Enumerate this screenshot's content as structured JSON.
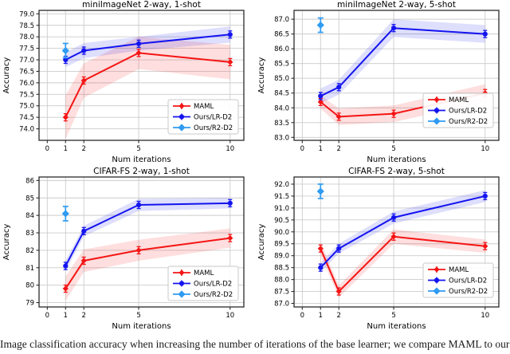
{
  "caption": {
    "text": "Image classification accuracy when increasing the number of iterations of the base learner; we compare MAML to our closed-form solvers with different numbers of steps."
  },
  "colors": {
    "maml": "#f51414",
    "lr_d2": "#1414f0",
    "r2_d2": "#2f9bf2",
    "grid": "#cccccc",
    "spine": "#2b2b2b",
    "legend_border": "#c8c8c8",
    "band_alpha": 0.14
  },
  "legend": {
    "items": [
      {
        "label": "MAML",
        "color": "#f51414",
        "marker": "diamond"
      },
      {
        "label": "Ours/LR-D2",
        "color": "#1414f0",
        "marker": "circle"
      },
      {
        "label": "Ours/R2-D2",
        "color": "#2f9bf2",
        "marker": "diamond-big"
      }
    ]
  },
  "chart_data": [
    {
      "type": "line",
      "title": "miniImageNet 2-way, 1-shot",
      "xlabel": "Num iterations",
      "ylabel": "Accuracy",
      "x": [
        1,
        2,
        5,
        10
      ],
      "xticks": [
        0,
        1,
        2,
        5,
        10
      ],
      "xlim": [
        -0.45,
        10.75
      ],
      "ylim": [
        73.5,
        79.15
      ],
      "yticks": [
        74.0,
        74.5,
        75.0,
        75.5,
        76.0,
        76.5,
        77.0,
        77.5,
        78.0,
        78.5,
        79.0
      ],
      "ytick_decimals": 1,
      "grid": true,
      "legend_position": "lower right",
      "legend_bottom_offset": 8,
      "series": [
        {
          "name": "MAML",
          "color": "#f51414",
          "marker": "diamond",
          "values": [
            74.5,
            76.1,
            77.3,
            76.9
          ],
          "ci": [
            0.95,
            0.75,
            0.7,
            0.75
          ]
        },
        {
          "name": "Ours/LR-D2",
          "color": "#1414f0",
          "marker": "circle",
          "values": [
            77.0,
            77.4,
            77.7,
            78.1
          ],
          "ci": [
            0.32,
            0.33,
            0.3,
            0.35
          ]
        },
        {
          "name": "Ours/R2-D2",
          "color": "#2f9bf2",
          "marker": "diamond-big",
          "point_only": true,
          "x": [
            1
          ],
          "values": [
            77.4
          ],
          "err": [
            0.28
          ]
        }
      ]
    },
    {
      "type": "line",
      "title": "miniImageNet 2-way, 5-shot",
      "xlabel": "Num iterations",
      "ylabel": "Accuracy",
      "x": [
        1,
        2,
        5,
        10
      ],
      "xticks": [
        0,
        1,
        2,
        5,
        10
      ],
      "xlim": [
        -0.45,
        10.75
      ],
      "ylim": [
        82.9,
        87.3
      ],
      "yticks": [
        83.0,
        83.5,
        84.0,
        84.5,
        85.0,
        85.5,
        86.0,
        86.5,
        87.0
      ],
      "ytick_decimals": 1,
      "grid": true,
      "legend_position": "lower right",
      "legend_bottom_offset": 16,
      "series": [
        {
          "name": "MAML",
          "color": "#f51414",
          "marker": "diamond",
          "values": [
            84.2,
            83.7,
            83.8,
            84.5
          ],
          "ci": [
            0.22,
            0.28,
            0.28,
            0.3
          ]
        },
        {
          "name": "Ours/LR-D2",
          "color": "#1414f0",
          "marker": "circle",
          "values": [
            84.4,
            84.7,
            86.7,
            86.5
          ],
          "ci": [
            0.25,
            0.25,
            0.3,
            0.3
          ]
        },
        {
          "name": "Ours/R2-D2",
          "color": "#2f9bf2",
          "marker": "diamond-big",
          "point_only": true,
          "x": [
            1
          ],
          "values": [
            86.8
          ],
          "err": [
            0.17
          ]
        }
      ]
    },
    {
      "type": "line",
      "title": "CIFAR-FS 2-way, 1-shot",
      "xlabel": "Num iterations",
      "ylabel": "Accuracy",
      "x": [
        1,
        2,
        5,
        10
      ],
      "xticks": [
        0,
        1,
        2,
        5,
        10
      ],
      "xlim": [
        -0.45,
        10.75
      ],
      "ylim": [
        78.75,
        86.2
      ],
      "yticks": [
        79,
        80,
        81,
        82,
        83,
        84,
        85,
        86
      ],
      "ytick_decimals": 0,
      "grid": true,
      "legend_position": "lower right",
      "legend_bottom_offset": 8,
      "series": [
        {
          "name": "MAML",
          "color": "#f51414",
          "marker": "diamond",
          "values": [
            79.8,
            81.4,
            82.0,
            82.7
          ],
          "ci": [
            0.7,
            0.65,
            0.6,
            0.55
          ]
        },
        {
          "name": "Ours/LR-D2",
          "color": "#1414f0",
          "marker": "circle",
          "values": [
            81.1,
            83.1,
            84.6,
            84.7
          ],
          "ci": [
            0.3,
            0.3,
            0.35,
            0.3
          ]
        },
        {
          "name": "Ours/R2-D2",
          "color": "#2f9bf2",
          "marker": "diamond-big",
          "point_only": true,
          "x": [
            1
          ],
          "values": [
            84.1
          ],
          "err": [
            0.28
          ]
        }
      ]
    },
    {
      "type": "line",
      "title": "CIFAR-FS 2-way, 5-shot",
      "xlabel": "Num iterations",
      "ylabel": "Accuracy",
      "x": [
        1,
        2,
        5,
        10
      ],
      "xticks": [
        0,
        1,
        2,
        5,
        10
      ],
      "xlim": [
        -0.45,
        10.75
      ],
      "ylim": [
        86.85,
        92.3
      ],
      "yticks": [
        87.0,
        87.5,
        88.0,
        88.5,
        89.0,
        89.5,
        90.0,
        90.5,
        91.0,
        91.5,
        92.0
      ],
      "ytick_decimals": 1,
      "grid": true,
      "legend_position": "lower right",
      "legend_bottom_offset": 12,
      "series": [
        {
          "name": "MAML",
          "color": "#f51414",
          "marker": "diamond",
          "values": [
            89.3,
            87.5,
            89.8,
            89.4
          ],
          "ci": [
            0.28,
            0.25,
            0.3,
            0.28
          ]
        },
        {
          "name": "Ours/LR-D2",
          "color": "#1414f0",
          "marker": "circle",
          "values": [
            88.5,
            89.3,
            90.6,
            91.5
          ],
          "ci": [
            0.2,
            0.2,
            0.25,
            0.25
          ]
        },
        {
          "name": "Ours/R2-D2",
          "color": "#2f9bf2",
          "marker": "diamond-big",
          "point_only": true,
          "x": [
            1
          ],
          "values": [
            91.7
          ],
          "err": [
            0.15
          ]
        }
      ]
    }
  ]
}
